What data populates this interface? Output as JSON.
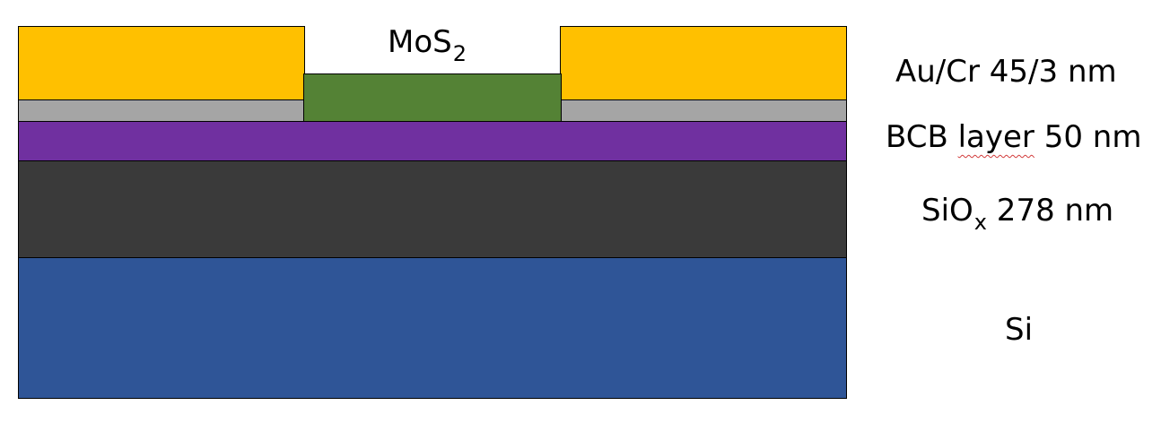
{
  "labels": {
    "mos2_main": "MoS",
    "mos2_sub": "2",
    "gold": "Au/Cr 45/3 nm",
    "bcb_prefix": "BCB ",
    "bcb_word": "layer",
    "bcb_suffix": " 50 nm",
    "siox_main": "SiO",
    "siox_sub": "x",
    "siox_suffix": " 278 nm",
    "si": "Si"
  },
  "colors": {
    "gold": "#FFC000",
    "chromium": "#A5A5A5",
    "mos2": "#548235",
    "bcb": "#7030A0",
    "siox": "#3A3A3A",
    "si": "#2F5597",
    "spellcheck": "#D23B3B"
  }
}
